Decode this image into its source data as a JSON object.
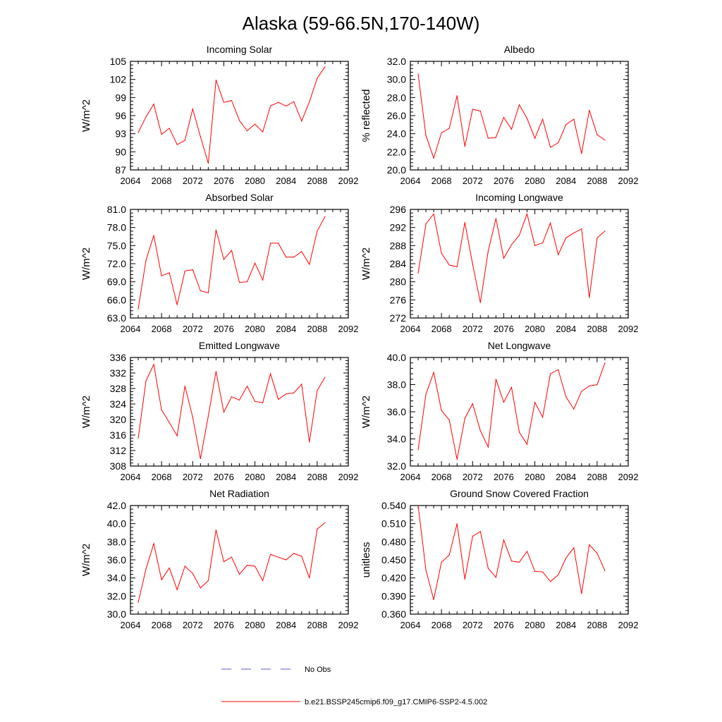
{
  "title": "Alaska (59-66.5N,170-140W)",
  "colors": {
    "model": "#ff0000",
    "obs": "#5a5adc",
    "axis": "#000000"
  },
  "legend": {
    "obs_label": "No Obs",
    "model_label": "b.e21.BSSP245cmip6.f09_g17.CMIP6-SSP2-4.5.002"
  },
  "chart_data": [
    {
      "type": "line",
      "title": "Incoming Solar",
      "ylabel": "W/m^2",
      "xlim": [
        2064,
        2092
      ],
      "ylim": [
        87,
        105
      ],
      "x_ticks": [
        2064,
        2068,
        2072,
        2076,
        2080,
        2084,
        2088,
        2092
      ],
      "x_tick_labels": [
        "2064",
        "2068",
        "2072",
        "2076",
        "2080",
        "2084",
        "2088",
        "2092"
      ],
      "y_ticks": [
        87,
        90,
        93,
        96,
        99,
        102,
        105
      ],
      "y_tick_labels": [
        "87",
        "90",
        "93",
        "96",
        "99",
        "102",
        "105"
      ],
      "x": [
        2065,
        2066,
        2067,
        2068,
        2069,
        2070,
        2071,
        2072,
        2073,
        2074,
        2075,
        2076,
        2077,
        2078,
        2079,
        2080,
        2081,
        2082,
        2083,
        2084,
        2085,
        2086,
        2087,
        2088,
        2089
      ],
      "values": [
        93.2,
        95.8,
        97.9,
        92.9,
        93.9,
        91.2,
        91.9,
        97.1,
        92.5,
        88.1,
        101.9,
        98.2,
        98.5,
        95.2,
        93.5,
        94.6,
        93.3,
        97.6,
        98.2,
        97.6,
        98.3,
        95.1,
        98.3,
        102.2,
        104.1
      ]
    },
    {
      "type": "line",
      "title": "Albedo",
      "ylabel": "% reflected",
      "xlim": [
        2064,
        2092
      ],
      "ylim": [
        20.0,
        32.0
      ],
      "x_ticks": [
        2064,
        2068,
        2072,
        2076,
        2080,
        2084,
        2088,
        2092
      ],
      "x_tick_labels": [
        "2064",
        "2068",
        "2072",
        "2076",
        "2080",
        "2084",
        "2088",
        "2092"
      ],
      "y_ticks": [
        20,
        22,
        24,
        26,
        28,
        30,
        32
      ],
      "y_tick_labels": [
        "20.0",
        "22.0",
        "24.0",
        "26.0",
        "28.0",
        "30.0",
        "32.0"
      ],
      "x": [
        2065,
        2066,
        2067,
        2068,
        2069,
        2070,
        2071,
        2072,
        2073,
        2074,
        2075,
        2076,
        2077,
        2078,
        2079,
        2080,
        2081,
        2082,
        2083,
        2084,
        2085,
        2086,
        2087,
        2088,
        2089
      ],
      "values": [
        30.6,
        23.8,
        21.3,
        24.1,
        24.6,
        28.2,
        22.6,
        26.7,
        26.5,
        23.5,
        23.6,
        25.8,
        24.5,
        27.2,
        25.7,
        23.5,
        25.6,
        22.5,
        23.0,
        25.0,
        25.6,
        21.8,
        26.6,
        23.9,
        23.3
      ]
    },
    {
      "type": "line",
      "title": "Absorbed Solar",
      "ylabel": "W/m^2",
      "xlim": [
        2064,
        2092
      ],
      "ylim": [
        63.0,
        81.0
      ],
      "x_ticks": [
        2064,
        2068,
        2072,
        2076,
        2080,
        2084,
        2088,
        2092
      ],
      "x_tick_labels": [
        "2064",
        "2068",
        "2072",
        "2076",
        "2080",
        "2084",
        "2088",
        "2092"
      ],
      "y_ticks": [
        63,
        66,
        69,
        72,
        75,
        78,
        81
      ],
      "y_tick_labels": [
        "63.0",
        "66.0",
        "69.0",
        "72.0",
        "75.0",
        "78.0",
        "81.0"
      ],
      "x": [
        2065,
        2066,
        2067,
        2068,
        2069,
        2070,
        2071,
        2072,
        2073,
        2074,
        2075,
        2076,
        2077,
        2078,
        2079,
        2080,
        2081,
        2082,
        2083,
        2084,
        2085,
        2086,
        2087,
        2088,
        2089
      ],
      "values": [
        64.5,
        72.6,
        76.7,
        70.0,
        70.5,
        65.2,
        70.8,
        71.0,
        67.5,
        67.2,
        77.6,
        72.7,
        74.2,
        68.9,
        69.0,
        72.1,
        69.3,
        75.4,
        75.4,
        73.1,
        73.1,
        74.0,
        71.9,
        77.4,
        79.8
      ]
    },
    {
      "type": "line",
      "title": "Incoming Longwave",
      "ylabel": "W/m^2",
      "xlim": [
        2064,
        2092
      ],
      "ylim": [
        272,
        296
      ],
      "x_ticks": [
        2064,
        2068,
        2072,
        2076,
        2080,
        2084,
        2088,
        2092
      ],
      "x_tick_labels": [
        "2064",
        "2068",
        "2072",
        "2076",
        "2080",
        "2084",
        "2088",
        "2092"
      ],
      "y_ticks": [
        272,
        276,
        280,
        284,
        288,
        292,
        296
      ],
      "y_tick_labels": [
        "272",
        "276",
        "280",
        "284",
        "288",
        "292",
        "296"
      ],
      "x": [
        2065,
        2066,
        2067,
        2068,
        2069,
        2070,
        2071,
        2072,
        2073,
        2074,
        2075,
        2076,
        2077,
        2078,
        2079,
        2080,
        2081,
        2082,
        2083,
        2084,
        2085,
        2086,
        2087,
        2088,
        2089
      ],
      "values": [
        281.9,
        292.8,
        295.0,
        286.3,
        283.7,
        283.3,
        293.1,
        283.9,
        275.4,
        286.8,
        294.0,
        285.2,
        288.2,
        290.3,
        295.0,
        288.0,
        288.6,
        293.0,
        286.0,
        289.7,
        290.8,
        291.7,
        276.5,
        289.7,
        291.2
      ]
    },
    {
      "type": "line",
      "title": "Emitted Longwave",
      "ylabel": "W/m^2",
      "xlim": [
        2064,
        2092
      ],
      "ylim": [
        308,
        336
      ],
      "x_ticks": [
        2064,
        2068,
        2072,
        2076,
        2080,
        2084,
        2088,
        2092
      ],
      "x_tick_labels": [
        "2064",
        "2068",
        "2072",
        "2076",
        "2080",
        "2084",
        "2088",
        "2092"
      ],
      "y_ticks": [
        308,
        312,
        316,
        320,
        324,
        328,
        332,
        336
      ],
      "y_tick_labels": [
        "308",
        "312",
        "316",
        "320",
        "324",
        "328",
        "332",
        "336"
      ],
      "x": [
        2065,
        2066,
        2067,
        2068,
        2069,
        2070,
        2071,
        2072,
        2073,
        2074,
        2075,
        2076,
        2077,
        2078,
        2079,
        2080,
        2081,
        2082,
        2083,
        2084,
        2085,
        2086,
        2087,
        2088,
        2089
      ],
      "values": [
        315.2,
        330.0,
        334.2,
        322.5,
        319.2,
        315.8,
        328.6,
        320.6,
        309.9,
        320.9,
        332.4,
        321.9,
        325.9,
        325.0,
        328.6,
        324.7,
        324.3,
        331.8,
        325.2,
        326.6,
        326.9,
        329.1,
        314.2,
        327.5,
        330.9
      ]
    },
    {
      "type": "line",
      "title": "Net Longwave",
      "ylabel": "W/m^2",
      "xlim": [
        2064,
        2092
      ],
      "ylim": [
        32.0,
        40.0
      ],
      "x_ticks": [
        2064,
        2068,
        2072,
        2076,
        2080,
        2084,
        2088,
        2092
      ],
      "x_tick_labels": [
        "2064",
        "2068",
        "2072",
        "2076",
        "2080",
        "2084",
        "2088",
        "2092"
      ],
      "y_ticks": [
        32,
        34,
        36,
        38,
        40
      ],
      "y_tick_labels": [
        "32.0",
        "34.0",
        "36.0",
        "38.0",
        "40.0"
      ],
      "x": [
        2065,
        2066,
        2067,
        2068,
        2069,
        2070,
        2071,
        2072,
        2073,
        2074,
        2075,
        2076,
        2077,
        2078,
        2079,
        2080,
        2081,
        2082,
        2083,
        2084,
        2085,
        2086,
        2087,
        2088,
        2089
      ],
      "values": [
        33.2,
        37.3,
        38.9,
        36.1,
        35.4,
        32.5,
        35.5,
        36.6,
        34.6,
        33.4,
        38.4,
        36.7,
        37.8,
        34.5,
        33.6,
        36.7,
        35.6,
        38.8,
        39.1,
        37.1,
        36.2,
        37.5,
        37.9,
        38.0,
        39.6
      ]
    },
    {
      "type": "line",
      "title": "Net Radiation",
      "ylabel": "W/m^2",
      "xlim": [
        2064,
        2092
      ],
      "ylim": [
        30.0,
        42.0
      ],
      "x_ticks": [
        2064,
        2068,
        2072,
        2076,
        2080,
        2084,
        2088,
        2092
      ],
      "x_tick_labels": [
        "2064",
        "2068",
        "2072",
        "2076",
        "2080",
        "2084",
        "2088",
        "2092"
      ],
      "y_ticks": [
        30,
        32,
        34,
        36,
        38,
        40,
        42
      ],
      "y_tick_labels": [
        "30.0",
        "32.0",
        "34.0",
        "36.0",
        "38.0",
        "40.0",
        "42.0"
      ],
      "x": [
        2065,
        2066,
        2067,
        2068,
        2069,
        2070,
        2071,
        2072,
        2073,
        2074,
        2075,
        2076,
        2077,
        2078,
        2079,
        2080,
        2081,
        2082,
        2083,
        2084,
        2085,
        2086,
        2087,
        2088,
        2089
      ],
      "values": [
        31.3,
        35.0,
        37.8,
        33.8,
        35.1,
        32.7,
        35.3,
        34.5,
        32.9,
        33.7,
        39.3,
        35.8,
        36.3,
        34.4,
        35.4,
        35.3,
        33.7,
        36.6,
        36.3,
        36.0,
        36.7,
        36.4,
        34.0,
        39.4,
        40.1
      ]
    },
    {
      "type": "line",
      "title": "Ground Snow Covered Fraction",
      "ylabel": "unitless",
      "xlim": [
        2064,
        2092
      ],
      "ylim": [
        0.36,
        0.54
      ],
      "x_ticks": [
        2064,
        2068,
        2072,
        2076,
        2080,
        2084,
        2088,
        2092
      ],
      "x_tick_labels": [
        "2064",
        "2068",
        "2072",
        "2076",
        "2080",
        "2084",
        "2088",
        "2092"
      ],
      "y_ticks": [
        0.36,
        0.39,
        0.42,
        0.45,
        0.48,
        0.51,
        0.54
      ],
      "y_tick_labels": [
        "0.360",
        "0.390",
        "0.420",
        "0.450",
        "0.480",
        "0.510",
        "0.540"
      ],
      "x": [
        2065,
        2066,
        2067,
        2068,
        2069,
        2070,
        2071,
        2072,
        2073,
        2074,
        2075,
        2076,
        2077,
        2078,
        2079,
        2080,
        2081,
        2082,
        2083,
        2084,
        2085,
        2086,
        2087,
        2088,
        2089
      ],
      "values": [
        0.54,
        0.433,
        0.384,
        0.446,
        0.458,
        0.51,
        0.418,
        0.489,
        0.497,
        0.436,
        0.421,
        0.483,
        0.448,
        0.446,
        0.464,
        0.431,
        0.43,
        0.414,
        0.425,
        0.453,
        0.47,
        0.394,
        0.475,
        0.461,
        0.432
      ]
    }
  ]
}
